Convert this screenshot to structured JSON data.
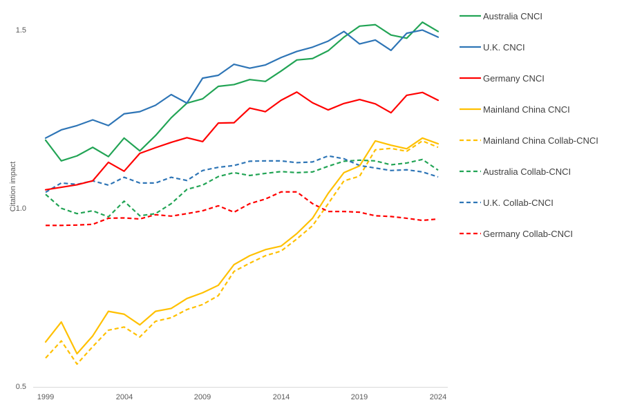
{
  "chart_data": {
    "type": "line",
    "title": "",
    "xlabel": "",
    "ylabel": "Citation impact",
    "xlim": [
      1999,
      2024
    ],
    "ylim": [
      0.5,
      1.5
    ],
    "grid": false,
    "legend_position": "right",
    "xticks": [
      "1999",
      "2004",
      "2009",
      "2014",
      "2019",
      "2024"
    ],
    "yticks": [
      "1.5",
      "1.0",
      "0.5"
    ],
    "axis_line_color": "#D9D9D9",
    "tick_text_color": "#595959",
    "legend_text_color": "#404040",
    "x": [
      1999,
      2000,
      2001,
      2002,
      2003,
      2004,
      2005,
      2006,
      2007,
      2008,
      2009,
      2010,
      2011,
      2012,
      2013,
      2014,
      2015,
      2016,
      2017,
      2018,
      2019,
      2020,
      2021,
      2022,
      2023,
      2024
    ],
    "series": [
      {
        "name": "Australia CNCI",
        "color": "#22A455",
        "dash": "solid",
        "values": [
          1.192,
          1.134,
          1.148,
          1.172,
          1.146,
          1.198,
          1.162,
          1.205,
          1.255,
          1.296,
          1.308,
          1.343,
          1.348,
          1.362,
          1.357,
          1.386,
          1.417,
          1.421,
          1.443,
          1.481,
          1.512,
          1.516,
          1.487,
          1.478,
          1.523,
          1.497
        ]
      },
      {
        "name": "U.K. CNCI",
        "color": "#2E75B6",
        "dash": "solid",
        "values": [
          1.198,
          1.221,
          1.233,
          1.249,
          1.233,
          1.266,
          1.272,
          1.29,
          1.32,
          1.296,
          1.366,
          1.374,
          1.405,
          1.394,
          1.403,
          1.424,
          1.441,
          1.453,
          1.47,
          1.497,
          1.462,
          1.473,
          1.444,
          1.492,
          1.501,
          1.481
        ]
      },
      {
        "name": "Germany CNCI",
        "color": "#FF0000",
        "dash": "solid",
        "values": [
          1.053,
          1.06,
          1.067,
          1.078,
          1.13,
          1.105,
          1.155,
          1.171,
          1.186,
          1.199,
          1.188,
          1.24,
          1.241,
          1.282,
          1.272,
          1.304,
          1.327,
          1.297,
          1.277,
          1.295,
          1.306,
          1.294,
          1.269,
          1.318,
          1.326,
          1.304
        ]
      },
      {
        "name": "Mainland China CNCI",
        "color": "#FFC000",
        "dash": "solid",
        "values": [
          0.626,
          0.682,
          0.593,
          0.643,
          0.712,
          0.704,
          0.674,
          0.712,
          0.72,
          0.748,
          0.764,
          0.785,
          0.843,
          0.868,
          0.885,
          0.895,
          0.93,
          0.973,
          1.043,
          1.101,
          1.12,
          1.19,
          1.178,
          1.168,
          1.198,
          1.182
        ]
      },
      {
        "name": "Mainland China Collab-CNCI",
        "color": "#FFC000",
        "dash": "dashed",
        "values": [
          0.581,
          0.629,
          0.564,
          0.613,
          0.659,
          0.668,
          0.64,
          0.684,
          0.694,
          0.717,
          0.731,
          0.756,
          0.824,
          0.847,
          0.868,
          0.881,
          0.915,
          0.952,
          1.014,
          1.078,
          1.091,
          1.165,
          1.169,
          1.161,
          1.19,
          1.172
        ]
      },
      {
        "name": "Australia Collab-CNCI",
        "color": "#22A455",
        "dash": "dashed",
        "values": [
          1.04,
          1.001,
          0.986,
          0.994,
          0.977,
          1.021,
          0.98,
          0.986,
          1.014,
          1.054,
          1.066,
          1.09,
          1.101,
          1.093,
          1.099,
          1.104,
          1.101,
          1.103,
          1.119,
          1.133,
          1.136,
          1.134,
          1.123,
          1.128,
          1.138,
          1.108
        ]
      },
      {
        "name": "U.K. Collab-CNCI",
        "color": "#2E75B6",
        "dash": "dashed",
        "values": [
          1.046,
          1.072,
          1.068,
          1.078,
          1.066,
          1.088,
          1.072,
          1.072,
          1.088,
          1.079,
          1.107,
          1.116,
          1.121,
          1.133,
          1.134,
          1.134,
          1.129,
          1.131,
          1.148,
          1.14,
          1.121,
          1.114,
          1.107,
          1.109,
          1.103,
          1.089
        ]
      },
      {
        "name": "Germany Collab-CNCI",
        "color": "#FF0000",
        "dash": "dashed",
        "values": [
          0.953,
          0.953,
          0.954,
          0.956,
          0.973,
          0.974,
          0.971,
          0.983,
          0.979,
          0.986,
          0.994,
          1.008,
          0.99,
          1.014,
          1.027,
          1.047,
          1.047,
          1.014,
          0.992,
          0.992,
          0.99,
          0.98,
          0.978,
          0.973,
          0.967,
          0.971
        ]
      }
    ]
  }
}
